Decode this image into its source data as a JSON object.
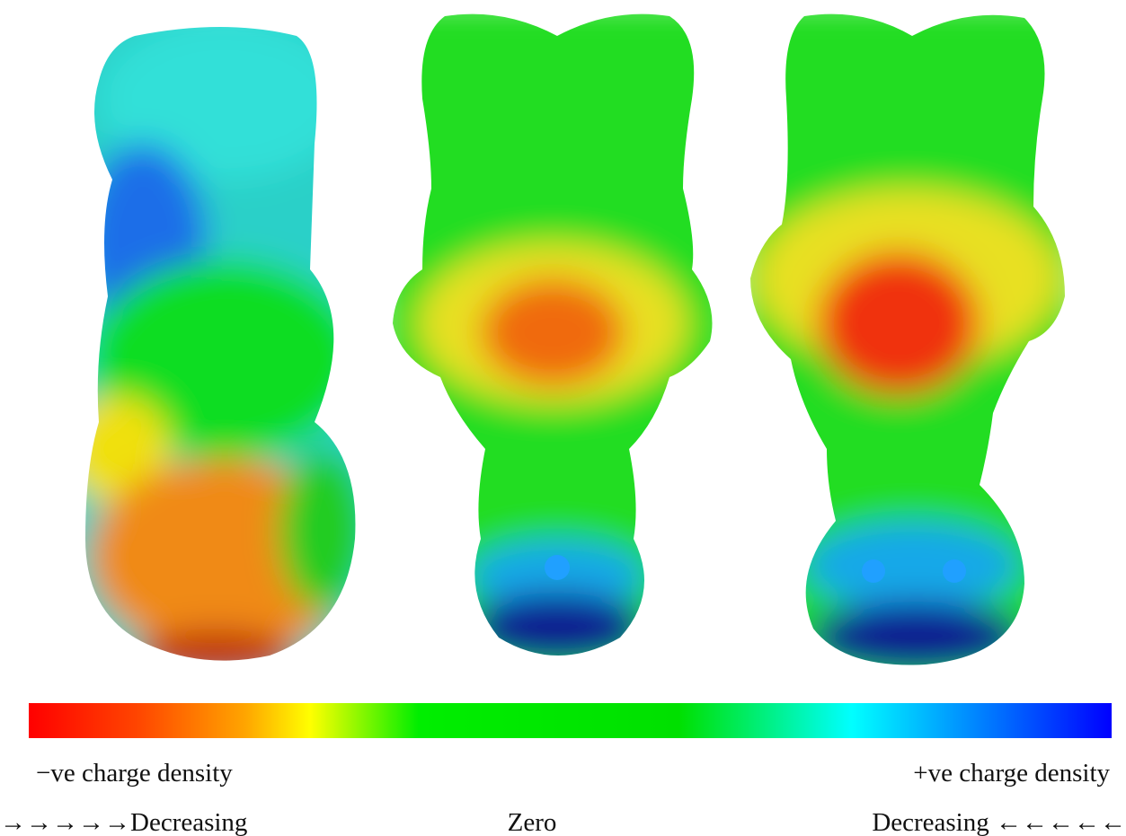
{
  "labels": {
    "negative": "−ve charge density",
    "positive": "+ve charge density",
    "left_direction": "→→→→→Decreasing",
    "center": "Zero",
    "right_direction": "Decreasing ←←←←←"
  }
}
